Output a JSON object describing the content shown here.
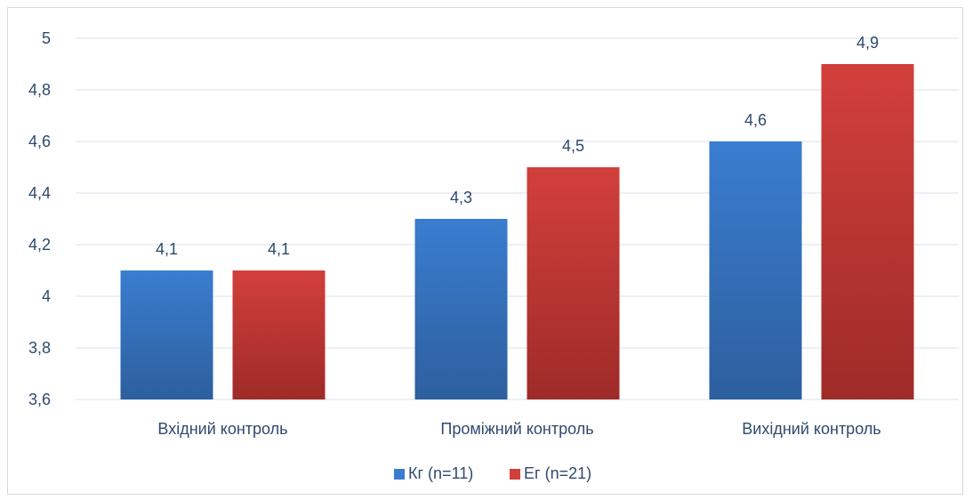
{
  "chart_data": {
    "type": "bar",
    "categories": [
      "Вхідний контроль",
      "Проміжний контроль",
      "Вихідний контроль"
    ],
    "series": [
      {
        "name": "Кг (n=11)",
        "values": [
          4.1,
          4.3,
          4.6
        ],
        "color": "#3a7dd0",
        "color_dark": "#2d5f9e"
      },
      {
        "name": "Ег (n=21)",
        "values": [
          4.1,
          4.5,
          4.9
        ],
        "color": "#d23f3b",
        "color_dark": "#9e2b28"
      }
    ],
    "value_labels": [
      [
        "4,1",
        "4,3",
        "4,6"
      ],
      [
        "4,1",
        "4,5",
        "4,9"
      ]
    ],
    "yticks": [
      3.6,
      3.8,
      4.0,
      4.2,
      4.4,
      4.6,
      4.8,
      5.0
    ],
    "ytick_labels": [
      "3,6",
      "3,8",
      "4",
      "4,2",
      "4,4",
      "4,6",
      "4,8",
      "5"
    ],
    "ylim": [
      3.6,
      5.0
    ],
    "grid": true,
    "legend_position": "bottom-center",
    "title": "",
    "xlabel": "",
    "ylabel": ""
  }
}
